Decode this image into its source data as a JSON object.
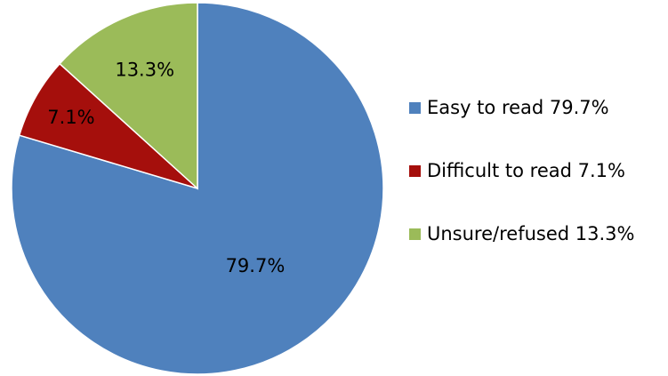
{
  "chart_data": {
    "type": "pie",
    "slices": [
      {
        "name": "Easy to read",
        "value": 79.7,
        "label": "79.7%",
        "legend_label": "Easy to read 79.7%",
        "color": "#4F81BD"
      },
      {
        "name": "Difficult to read",
        "value": 7.1,
        "label": "7.1%",
        "legend_label": "Difficult to read 7.1%",
        "color": "#A50F0C"
      },
      {
        "name": "Unsure/refused",
        "value": 13.3,
        "label": "13.3%",
        "legend_label": "Unsure/refused 13.3%",
        "color": "#9BBB59"
      }
    ],
    "start_angle": "12 o'clock",
    "direction": "clockwise",
    "legend": "right"
  }
}
